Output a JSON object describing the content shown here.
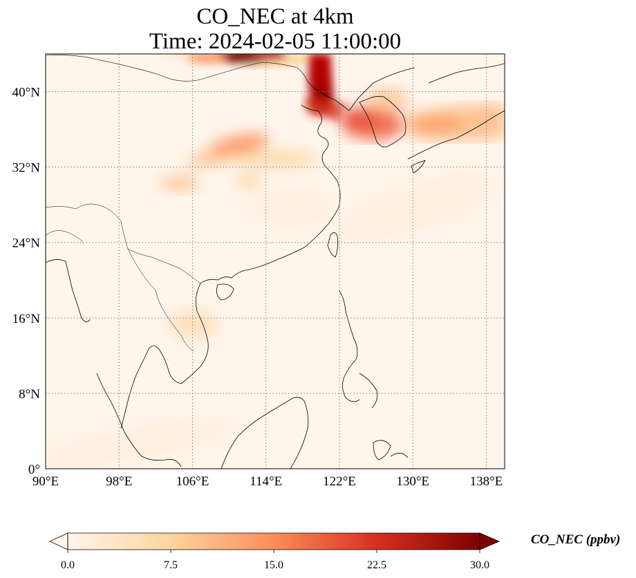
{
  "title_line1": "CO_NEC at 4km",
  "title_line2": "Time: 2024-02-05 11:00:00",
  "map": {
    "lon_range": [
      90,
      140
    ],
    "lat_range": [
      0,
      44
    ],
    "lon_ticks": [
      {
        "value": 90,
        "label": "90°E"
      },
      {
        "value": 98,
        "label": "98°E"
      },
      {
        "value": 106,
        "label": "106°E"
      },
      {
        "value": 114,
        "label": "114°E"
      },
      {
        "value": 122,
        "label": "122°E"
      },
      {
        "value": 130,
        "label": "130°E"
      },
      {
        "value": 138,
        "label": "138°E"
      }
    ],
    "lat_ticks": [
      {
        "value": 0,
        "label": "0°"
      },
      {
        "value": 8,
        "label": "8°N"
      },
      {
        "value": 16,
        "label": "16°N"
      },
      {
        "value": 24,
        "label": "24°N"
      },
      {
        "value": 32,
        "label": "32°N"
      },
      {
        "value": 40,
        "label": "40°N"
      }
    ],
    "gridlines": "dotted",
    "background_color": "#fff5eb",
    "colormap": "OrRd"
  },
  "colorbar": {
    "label": "CO_NEC (ppbv)",
    "min": 0.0,
    "max": 30.0,
    "extend": "both",
    "ticks": [
      "0.0",
      "7.5",
      "15.0",
      "22.5",
      "30.0"
    ],
    "colors": [
      "#fff5eb",
      "#fdd49e",
      "#fc8d59",
      "#d7301f",
      "#7f0000"
    ]
  },
  "plumes": [
    {
      "lon": 111,
      "lat": 43.5,
      "value": 30
    },
    {
      "lon": 119.5,
      "lat": 40,
      "value": 28
    },
    {
      "lon": 125.5,
      "lat": 37.5,
      "value": 15
    },
    {
      "lon": 132,
      "lat": 36.5,
      "value": 9
    },
    {
      "lon": 111,
      "lat": 35,
      "value": 10
    },
    {
      "lon": 104,
      "lat": 30.5,
      "value": 6
    }
  ]
}
